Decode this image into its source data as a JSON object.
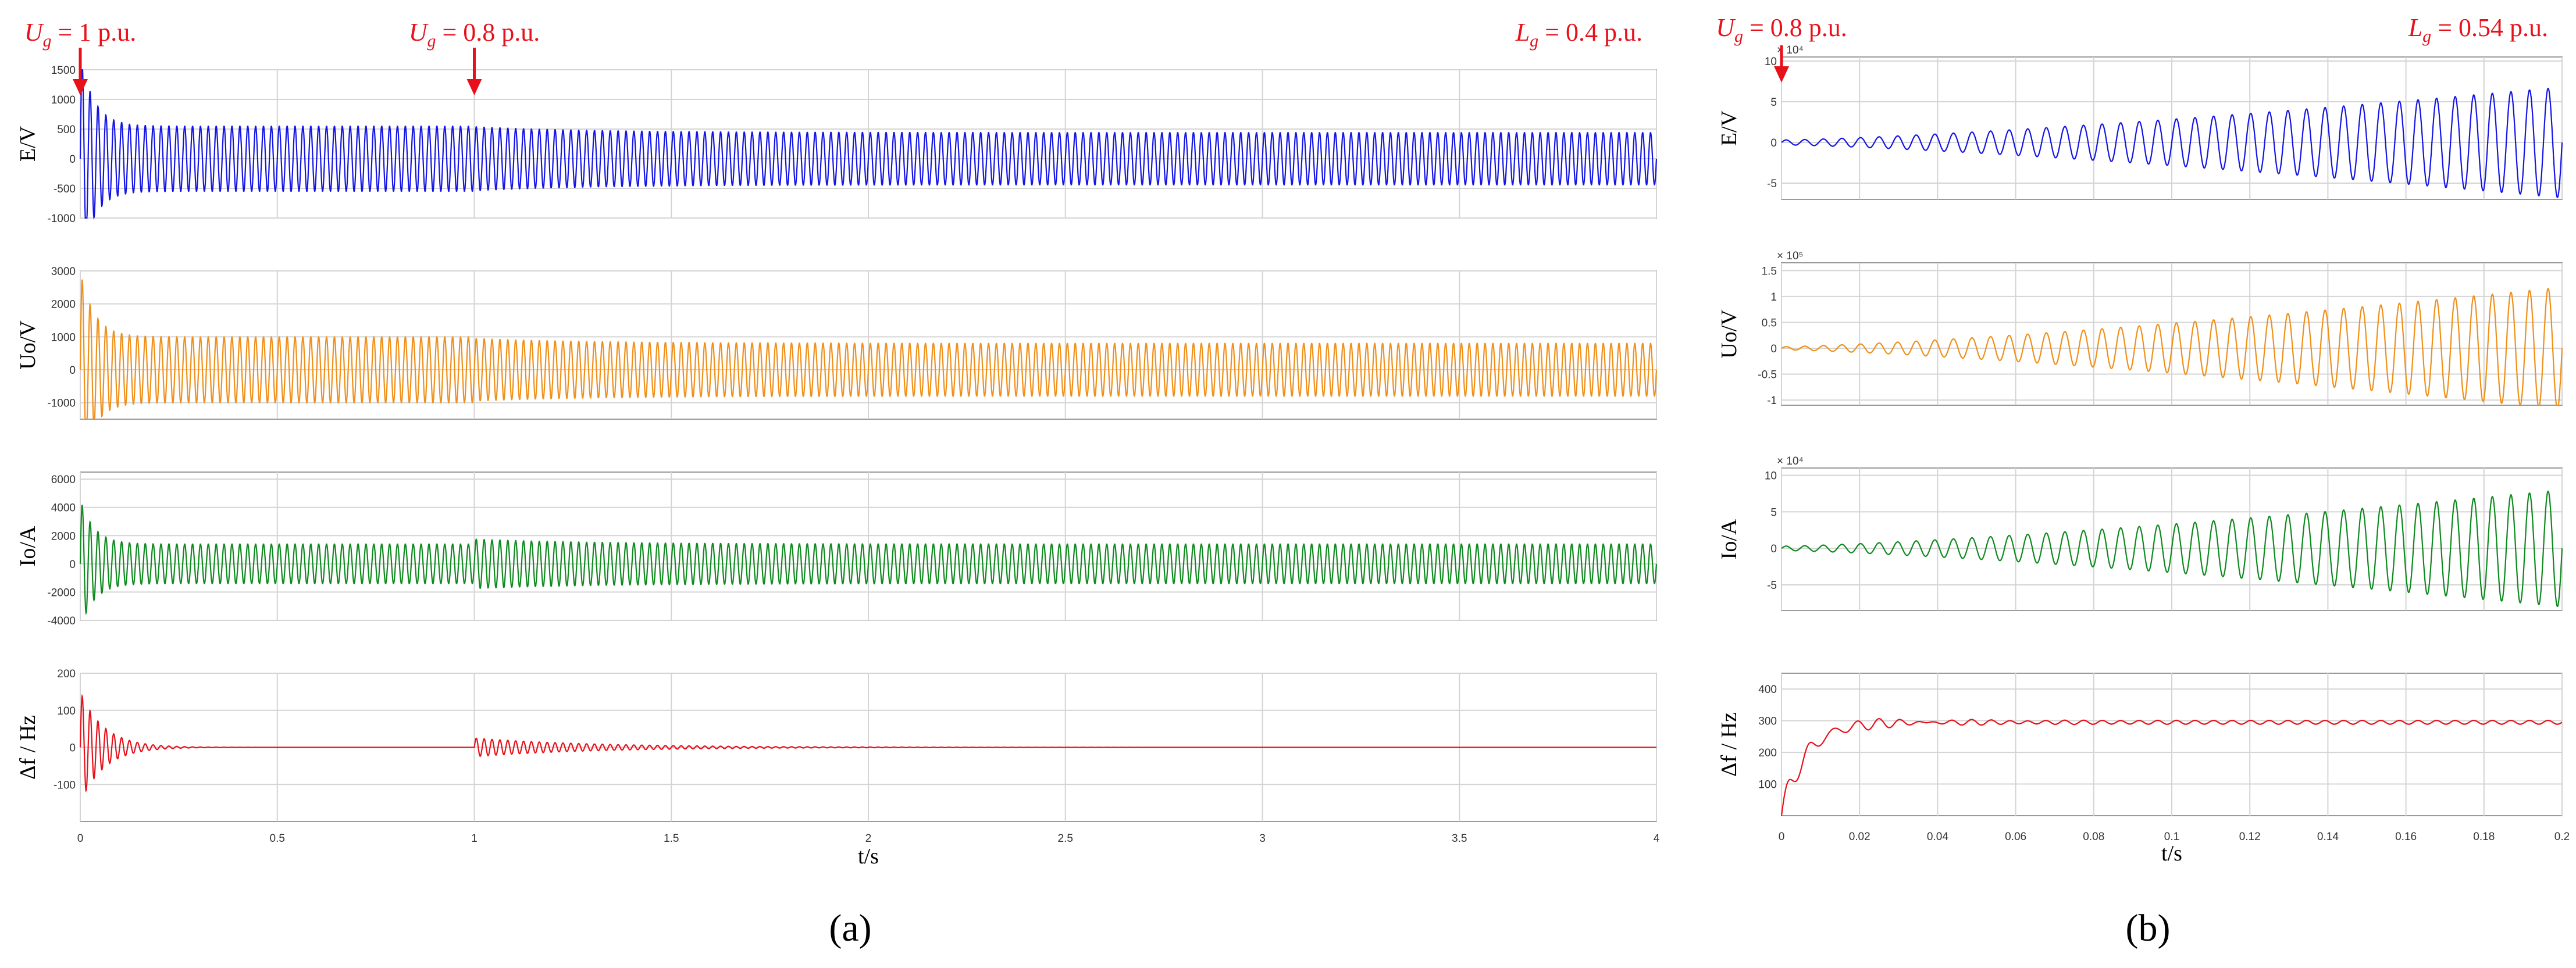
{
  "figure": {
    "panel_labels": [
      "(a)",
      "(b)"
    ]
  },
  "chart_data": [
    {
      "id": "a",
      "type": "line",
      "x_label": "t/s",
      "x_range": [
        0,
        4
      ],
      "x_ticks": [
        0,
        0.5,
        1,
        1.5,
        2,
        2.5,
        3,
        3.5,
        4
      ],
      "x_tick_labels": [
        "0",
        "0.5",
        "1",
        "1.5",
        "2",
        "2.5",
        "3",
        "3.5",
        "4"
      ],
      "grid": true,
      "annotations": [
        {
          "text": "U",
          "sub": "g",
          "rest": " = 1 p.u.",
          "x": 0,
          "arrow": true
        },
        {
          "text": "U",
          "sub": "g",
          "rest": " = 0.8 p.u.",
          "x": 1,
          "arrow": true
        },
        {
          "text": "L",
          "sub": "g",
          "rest": " = 0.4 p.u.",
          "x": 3.8,
          "arrow": false
        }
      ],
      "subplots": [
        {
          "ylabel": "E/V",
          "color": "#1414e6",
          "ylim": [
            -1000,
            1500
          ],
          "yticks": [
            -1000,
            -500,
            0,
            500,
            1000,
            1500
          ],
          "ytick_labels": [
            "-1000",
            "-500",
            "0",
            "500",
            "1000",
            "1500"
          ],
          "cycles": 200,
          "signal": {
            "initial_amp": 1200,
            "initial_tau": 0.035,
            "events": [
              {
                "t": 0,
                "amp": 550
              },
              {
                "t": 1,
                "amp": 440,
                "jump": 100,
                "tau": 0.3
              }
            ]
          }
        },
        {
          "ylabel": "Uo/V",
          "color": "#f0901a",
          "ylim": [
            -1500,
            3000
          ],
          "yticks": [
            -1000,
            0,
            1000,
            2000,
            3000
          ],
          "ytick_labels": [
            "-1000",
            "0",
            "1000",
            "2000",
            "3000"
          ],
          "cycles": 200,
          "signal": {
            "initial_amp": 2000,
            "initial_tau": 0.035,
            "events": [
              {
                "t": 0,
                "amp": 1000
              },
              {
                "t": 1,
                "amp": 800,
                "jump": 150,
                "tau": 0.3
              }
            ]
          }
        },
        {
          "ylabel": "Io/A",
          "color": "#0e8a1e",
          "ylim": [
            -4000,
            6500
          ],
          "yticks": [
            -4000,
            -2000,
            0,
            2000,
            4000,
            6000
          ],
          "ytick_labels": [
            "-4000",
            "-2000",
            "0",
            "2000",
            "4000",
            "6000"
          ],
          "cycles": 200,
          "signal": {
            "initial_amp": 3200,
            "initial_tau": 0.035,
            "events": [
              {
                "t": 0,
                "amp": 1400
              },
              {
                "t": 1,
                "amp": 1400,
                "jump": 350,
                "tau": 0.3
              }
            ]
          }
        },
        {
          "ylabel": "Δf / Hz",
          "color": "#e8101a",
          "ylim": [
            -200,
            200
          ],
          "yticks": [
            -100,
            0,
            100,
            200
          ],
          "ytick_labels": [
            "-100",
            "0",
            "100",
            "200"
          ],
          "cycles": 200,
          "signal": {
            "initial_amp": 0,
            "initial_tau": 0.1,
            "events": [
              {
                "t": 0,
                "amp": 0,
                "jump": 150,
                "tau": 0.06
              },
              {
                "t": 1,
                "amp": 0,
                "jump": 25,
                "tau": 0.3
              }
            ]
          }
        }
      ]
    },
    {
      "id": "b",
      "type": "line",
      "x_label": "t/s",
      "x_range": [
        0,
        0.2
      ],
      "x_ticks": [
        0,
        0.02,
        0.04,
        0.06,
        0.08,
        0.1,
        0.12,
        0.14,
        0.16,
        0.18,
        0.2
      ],
      "x_tick_labels": [
        "0",
        "0.02",
        "0.04",
        "0.06",
        "0.08",
        "0.1",
        "0.12",
        "0.14",
        "0.16",
        "0.18",
        "0.2"
      ],
      "grid": true,
      "annotations": [
        {
          "text": "U",
          "sub": "g",
          "rest": " = 0.8 p.u.",
          "x": 0,
          "arrow": true
        },
        {
          "text": "L",
          "sub": "g",
          "rest": " = 0.54 p.u.",
          "x": 0.18,
          "arrow": false
        }
      ],
      "subplots": [
        {
          "ylabel": "E/V",
          "color": "#1414e6",
          "ylim": [
            -70000,
            105000
          ],
          "yticks": [
            -50000,
            0,
            50000,
            100000
          ],
          "ytick_labels": [
            "-5",
            "0",
            "5",
            "10"
          ],
          "multiplier": "× 10⁴",
          "cycles": 42,
          "signal": {
            "start_amp": 3000,
            "end_amp": 68000
          }
        },
        {
          "ylabel": "Uo/V",
          "color": "#f0901a",
          "ylim": [
            -110000,
            165000
          ],
          "yticks": [
            -100000,
            -50000,
            0,
            50000,
            100000,
            150000
          ],
          "ytick_labels": [
            "-1",
            "-0.5",
            "0",
            "0.5",
            "1",
            "1.5"
          ],
          "multiplier": "× 10⁵",
          "cycles": 42,
          "signal": {
            "start_amp": 3000,
            "end_amp": 118000
          }
        },
        {
          "ylabel": "Io/A",
          "color": "#0e8a1e",
          "ylim": [
            -85000,
            110000
          ],
          "yticks": [
            -50000,
            0,
            50000,
            100000
          ],
          "ytick_labels": [
            "-5",
            "0",
            "5",
            "10"
          ],
          "multiplier": "× 10⁴",
          "cycles": 42,
          "signal": {
            "start_amp": 3000,
            "end_amp": 80000
          }
        },
        {
          "ylabel": "Δf / Hz",
          "color": "#e8101a",
          "ylim": [
            0,
            450
          ],
          "yticks": [
            100,
            200,
            300,
            400
          ],
          "ytick_labels": [
            "100",
            "200",
            "300",
            "400"
          ],
          "cycles": 42,
          "signal": {
            "settle": 295,
            "ripple": 35,
            "tau": 0.02
          }
        }
      ]
    }
  ]
}
